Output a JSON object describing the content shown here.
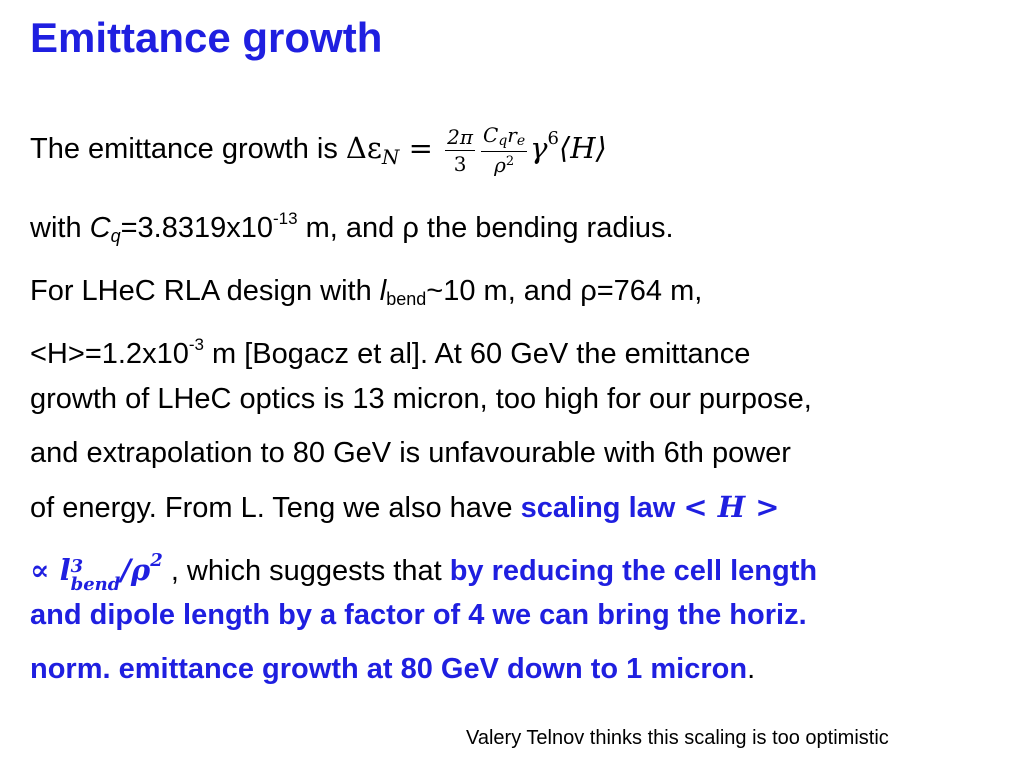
{
  "slide": {
    "title": "Emittance growth",
    "eq_line": {
      "lead": "The emittance growth is ",
      "delta_eps": "Δε",
      "eps_sub": "N",
      "equals": " = ",
      "frac1_num": "2π",
      "frac1_den": "3",
      "frac2_num_c": "C",
      "frac2_num_csub": "q",
      "frac2_num_r": "r",
      "frac2_num_rsub": "e",
      "frac2_den": "ρ",
      "frac2_den_sup": "2",
      "gamma": "γ",
      "gamma_sup": "6",
      "H_expr": "⟨H⟩"
    },
    "cq_line": {
      "pre": "with ",
      "c": "C",
      "c_sub": "q",
      "mid": "=3.8319x10",
      "exp": "-13",
      "post": " m, and ρ the bending radius."
    },
    "body": {
      "l1_a": "For LHeC RLA design with ",
      "l1_l": "l",
      "l1_lsub": "bend",
      "l1_b": "~10 m, and ρ=764 m,",
      "l2_a": "<H>=1.2x10",
      "l2_exp": "-3",
      "l2_b": " m [Bogacz et al]. At 60 GeV the emittance",
      "l3": "growth of LHeC optics is 13 micron, too high for our purpose,",
      "l4": "and extrapolation to 80 GeV is unfavourable with 6th power",
      "l5_a": "of energy. From L. Teng we also have ",
      "l5_b": "scaling law ",
      "l5_math": "< H >",
      "l6_prop": "∝ ",
      "l6_l": "l",
      "l6_lsup": "3",
      "l6_lsub": "bend",
      "l6_rho": "/ρ",
      "l6_rhosup": "2",
      "l6_text": " , which suggests that ",
      "l6_blue": "by reducing the cell length",
      "l7": "and dipole length by a factor of 4 we can bring the horiz.",
      "l8_blue": "norm. emittance growth at 80 GeV down to 1 micron",
      "l8_end": "."
    },
    "footnote": "Valery Telnov  thinks this scaling is too optimistic"
  }
}
